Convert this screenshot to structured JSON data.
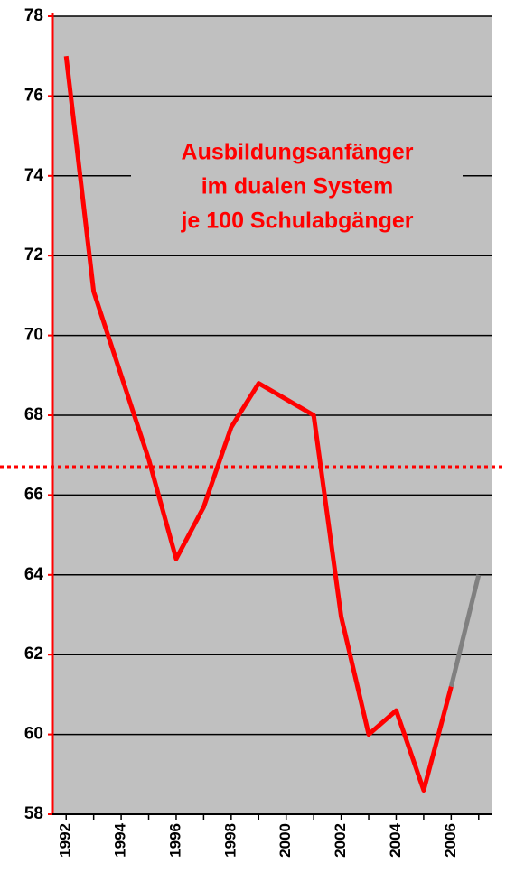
{
  "chart_data": {
    "type": "line",
    "x": [
      1992,
      1993,
      1994,
      1995,
      1996,
      1997,
      1998,
      1999,
      2000,
      2001,
      2002,
      2003,
      2004,
      2005,
      2006,
      2007
    ],
    "series": [
      {
        "color": "#ff0000",
        "values": [
          77,
          71.1,
          69.0,
          66.9,
          64.4,
          65.7,
          67.7,
          68.8,
          68.4,
          68.0,
          62.95,
          60.0,
          60.6,
          58.6,
          61.2,
          null
        ]
      },
      {
        "color": "#808080",
        "values": [
          null,
          null,
          null,
          null,
          null,
          null,
          null,
          null,
          null,
          null,
          null,
          null,
          null,
          null,
          61.2,
          64.0
        ]
      }
    ],
    "xlim": [
      1991.5,
      2007.5
    ],
    "xticks": [
      1992,
      1994,
      1996,
      1998,
      2000,
      2002,
      2004,
      2006
    ],
    "ylim": [
      58,
      78
    ],
    "yticks": [
      58,
      60,
      62,
      64,
      66,
      68,
      70,
      72,
      74,
      76,
      78
    ],
    "grid": true,
    "background": "#c0c0c0",
    "reference_line": {
      "value": 66.7,
      "color": "#ff0000",
      "style": "dotted"
    },
    "annotation": [
      "Ausbildungsanfänger",
      "im dualen System",
      "je 100 Schulabgänger"
    ],
    "annotation_color": "#ff0000"
  }
}
